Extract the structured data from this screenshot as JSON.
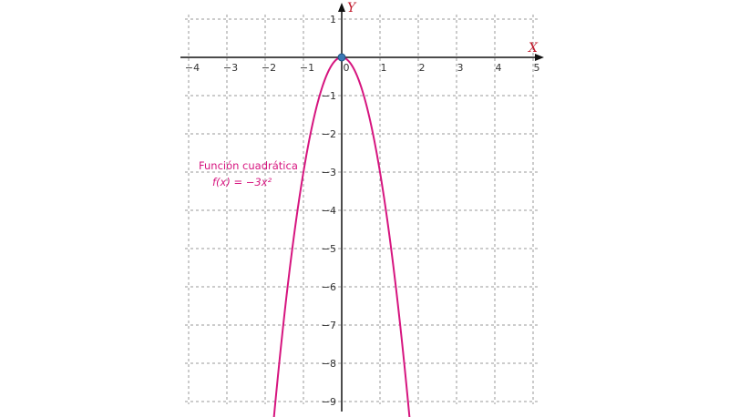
{
  "chart_data": {
    "type": "line",
    "title": "",
    "xlabel": "X",
    "ylabel": "Y",
    "xlim": [
      -4,
      5
    ],
    "ylim": [
      -9,
      1
    ],
    "x_ticks": [
      "−4",
      "−3",
      "−2",
      "−1",
      "0",
      "1",
      "2",
      "3",
      "4",
      "5"
    ],
    "y_ticks": [
      "1",
      "−1",
      "−2",
      "−3",
      "−4",
      "−5",
      "−6",
      "−7",
      "−8",
      "−9"
    ],
    "grid": true,
    "grid_style": "dashed",
    "series": [
      {
        "function": "f(x) = -3x^2",
        "color": "#d6157f",
        "x_range": [
          -1.8,
          1.8
        ]
      }
    ],
    "points": [
      {
        "x": 0,
        "y": 0,
        "color": "#3a78b5"
      }
    ],
    "annotation": {
      "line1": "Función cuadrática",
      "line2": "f(x) = −3x²",
      "color": "#d6157f"
    },
    "colors": {
      "axis": "#111111",
      "grid": "#9a9a9a",
      "axis_label": "#c0182a",
      "curve": "#d6157f"
    }
  }
}
